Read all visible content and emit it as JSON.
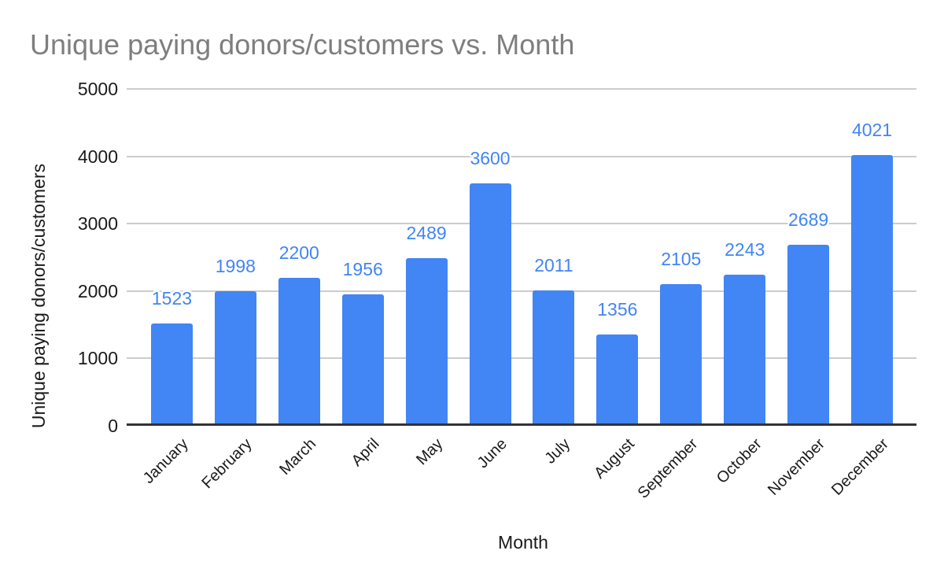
{
  "chart_data": {
    "type": "bar",
    "title": "Unique paying donors/customers vs. Month",
    "xlabel": "Month",
    "ylabel": "Unique paying donors/customers",
    "categories": [
      "January",
      "February",
      "March",
      "April",
      "May",
      "June",
      "July",
      "August",
      "September",
      "October",
      "November",
      "December"
    ],
    "values": [
      1523,
      1998,
      2200,
      1956,
      2489,
      3600,
      2011,
      1356,
      2105,
      2243,
      2689,
      4021
    ],
    "ylim": [
      0,
      5000
    ],
    "yticks": [
      0,
      1000,
      2000,
      3000,
      4000,
      5000
    ],
    "grid": true,
    "legend": "none",
    "data_labels": true,
    "colors": {
      "bar": "#4285f4",
      "annotation": "#4285f4",
      "title": "#7e7e7e",
      "axis_text": "#1a1a1a",
      "gridline": "#cccccc",
      "baseline": "#333333",
      "background": "#ffffff"
    }
  }
}
